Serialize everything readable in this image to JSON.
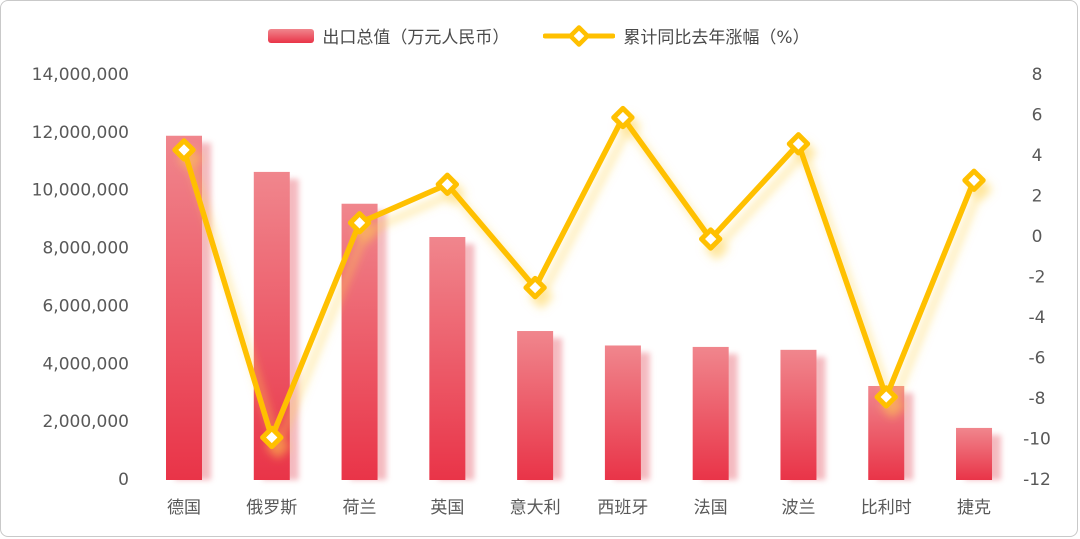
{
  "chart_data": {
    "type": "bar",
    "subtype": "combo-bar-line-dual-axis",
    "title": "",
    "categories": [
      "德国",
      "俄罗斯",
      "荷兰",
      "英国",
      "意大利",
      "西班牙",
      "法国",
      "波兰",
      "比利时",
      "捷克"
    ],
    "series": [
      {
        "name": "出口总值（万元人民币）",
        "type": "bar",
        "yaxis": "left",
        "values": [
          11900000,
          10650000,
          9550000,
          8400000,
          5150000,
          4650000,
          4600000,
          4500000,
          3250000,
          1800000
        ]
      },
      {
        "name": "累计同比去年涨幅（%）",
        "type": "line",
        "yaxis": "right",
        "values": [
          4.3,
          -9.9,
          0.7,
          2.6,
          -2.5,
          5.9,
          -0.1,
          4.6,
          -7.9,
          2.8
        ]
      }
    ],
    "left_axis": {
      "min": 0,
      "max": 14000000,
      "step": 2000000,
      "tick_labels": [
        "14,000,000",
        "12,000,000",
        "10,000,000",
        "8,000,000",
        "6,000,000",
        "4,000,000",
        "2,000,000",
        "0"
      ]
    },
    "right_axis": {
      "min": -12,
      "max": 8,
      "step": 2,
      "tick_labels": [
        "8",
        "6",
        "4",
        "2",
        "0",
        "-2",
        "-4",
        "-6",
        "-8",
        "-10",
        "-12"
      ]
    },
    "legend_position": "top",
    "grid": false
  },
  "legend": {
    "bar_label": "出口总值（万元人民币）",
    "line_label": "累计同比去年涨幅（%）"
  },
  "colors": {
    "bar_top": "#F0868D",
    "bar_bottom": "#E93448",
    "bar_shadow": "#F2A9B0",
    "line": "#FFC000",
    "line_glow": "#FFD24D",
    "marker_fill": "#FFFFFF",
    "axis_text": "#595959",
    "legend_text": "#4A4A4A",
    "frame_border": "#C9C9C9",
    "background": "#FFFFFF"
  }
}
